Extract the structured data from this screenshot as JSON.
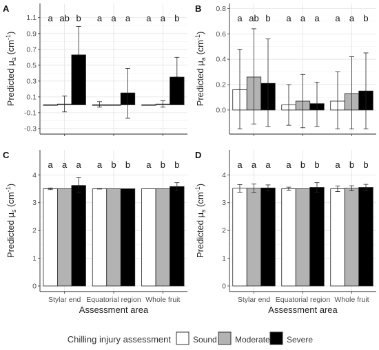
{
  "legend": {
    "title": "Chilling injury assessment",
    "items": [
      {
        "label": "Sound",
        "color": "#ffffff"
      },
      {
        "label": "Moderate",
        "color": "#b3b3b3"
      },
      {
        "label": "Severe",
        "color": "#000000"
      }
    ]
  },
  "chart_data": [
    {
      "panel": "A",
      "type": "bar",
      "categories": [
        "Stylar end",
        "Equatorial region",
        "Whole fruit"
      ],
      "series": [
        {
          "name": "Sound",
          "values": [
            0.0,
            0.0,
            0.0
          ],
          "err_low": [
            0.0,
            -0.03,
            0.0
          ],
          "err_high": [
            0.0,
            0.04,
            0.0
          ]
        },
        {
          "name": "Moderate",
          "values": [
            0.01,
            0.0,
            0.01
          ],
          "err_low": [
            -0.09,
            0.0,
            -0.03
          ],
          "err_high": [
            0.11,
            0.0,
            0.05
          ]
        },
        {
          "name": "Severe",
          "values": [
            0.63,
            0.15,
            0.35
          ],
          "err_low": [
            0.63,
            -0.17,
            0.35
          ],
          "err_high": [
            0.99,
            0.46,
            0.6
          ]
        }
      ],
      "letters": [
        [
          "a",
          "ab",
          "b"
        ],
        [
          "a",
          "a",
          "a"
        ],
        [
          "a",
          "a",
          "b"
        ]
      ],
      "ylabel_main": "Predicted μ",
      "ylabel_sub": "a",
      "ylabel_unit": " (cm",
      "ylabel_exp": "-1",
      "ylabel_close": ")",
      "ylim": [
        -0.37,
        1.28
      ],
      "yticks": [
        -0.3,
        -0.1,
        0.1,
        0.3,
        0.5,
        0.7,
        0.9,
        1.1
      ],
      "yticklabels": [
        "-0.3",
        "-0.1",
        "0.1",
        "0.3",
        "0.5",
        "0.7",
        "0.9",
        "1.1"
      ],
      "grid": true,
      "xlabel": "",
      "show_xticklabels": false
    },
    {
      "panel": "B",
      "type": "bar",
      "categories": [
        "Stylar end",
        "Equatorial region",
        "Whole fruit"
      ],
      "series": [
        {
          "name": "Sound",
          "values": [
            0.16,
            0.04,
            0.07
          ],
          "err_low": [
            -0.15,
            -0.12,
            -0.15
          ],
          "err_high": [
            0.48,
            0.2,
            0.3
          ]
        },
        {
          "name": "Moderate",
          "values": [
            0.26,
            0.07,
            0.13
          ],
          "err_low": [
            -0.11,
            -0.14,
            -0.15
          ],
          "err_high": [
            0.64,
            0.28,
            0.42
          ]
        },
        {
          "name": "Severe",
          "values": [
            0.21,
            0.05,
            0.15
          ],
          "err_low": [
            -0.13,
            -0.13,
            -0.15
          ],
          "err_high": [
            0.56,
            0.22,
            0.45
          ]
        }
      ],
      "letters": [
        [
          "a",
          "ab",
          "b"
        ],
        [
          "a",
          "a",
          "a"
        ],
        [
          "a",
          "a",
          "b"
        ]
      ],
      "ylabel_main": "Predicted μ",
      "ylabel_sub": "a",
      "ylabel_unit": " (cm",
      "ylabel_exp": "-1",
      "ylabel_close": ")",
      "ylim": [
        -0.19,
        0.84
      ],
      "yticks": [
        0.0,
        0.2,
        0.4,
        0.6,
        0.8
      ],
      "yticklabels": [
        "0.0",
        "0.2",
        "0.4",
        "0.6",
        "0.8"
      ],
      "grid": true,
      "xlabel": "",
      "show_xticklabels": false
    },
    {
      "panel": "C",
      "type": "bar",
      "categories": [
        "Stylar end",
        "Equatorial region",
        "Whole fruit"
      ],
      "series": [
        {
          "name": "Sound",
          "values": [
            3.5,
            3.5,
            3.5
          ],
          "err_low": [
            3.47,
            3.49,
            3.5
          ],
          "err_high": [
            3.53,
            3.51,
            3.5
          ]
        },
        {
          "name": "Moderate",
          "values": [
            3.5,
            3.5,
            3.5
          ],
          "err_low": [
            3.5,
            3.5,
            3.5
          ],
          "err_high": [
            3.5,
            3.5,
            3.5
          ]
        },
        {
          "name": "Severe",
          "values": [
            3.62,
            3.5,
            3.58
          ],
          "err_low": [
            3.35,
            3.5,
            3.45
          ],
          "err_high": [
            3.9,
            3.5,
            3.72
          ]
        }
      ],
      "letters": [
        [
          "a",
          "a",
          "a"
        ],
        [
          "a",
          "b",
          "b"
        ],
        [
          "a",
          "b",
          "b"
        ]
      ],
      "ylabel_main": "Predicted μ",
      "ylabel_sub": "s",
      "ylabel_unit": " (cm",
      "ylabel_exp": "-1",
      "ylabel_close": ")",
      "ylim": [
        -0.2,
        4.9
      ],
      "yticks": [
        0,
        1,
        2,
        3,
        4
      ],
      "yticklabels": [
        "0",
        "1",
        "2",
        "3",
        "4"
      ],
      "grid": true,
      "xlabel": "Assessment area",
      "show_xticklabels": true
    },
    {
      "panel": "D",
      "type": "bar",
      "categories": [
        "Stylar end",
        "Equatorial region",
        "Whole fruit"
      ],
      "series": [
        {
          "name": "Sound",
          "values": [
            3.52,
            3.5,
            3.5
          ],
          "err_low": [
            3.38,
            3.44,
            3.4
          ],
          "err_high": [
            3.65,
            3.56,
            3.6
          ]
        },
        {
          "name": "Moderate",
          "values": [
            3.52,
            3.5,
            3.52
          ],
          "err_low": [
            3.37,
            3.5,
            3.43
          ],
          "err_high": [
            3.67,
            3.5,
            3.61
          ]
        },
        {
          "name": "Severe",
          "values": [
            3.53,
            3.55,
            3.55
          ],
          "err_low": [
            3.42,
            3.38,
            3.44
          ],
          "err_high": [
            3.64,
            3.72,
            3.66
          ]
        }
      ],
      "letters": [
        [
          "a",
          "a",
          "a"
        ],
        [
          "a",
          "b",
          "b"
        ],
        [
          "a",
          "b",
          "b"
        ]
      ],
      "ylabel_main": "Predicted μ",
      "ylabel_sub": "s",
      "ylabel_unit": " (cm",
      "ylabel_exp": "-1",
      "ylabel_close": ")",
      "ylim": [
        -0.2,
        4.9
      ],
      "yticks": [
        0,
        1,
        2,
        3,
        4
      ],
      "yticklabels": [
        "0",
        "1",
        "2",
        "3",
        "4"
      ],
      "grid": true,
      "xlabel": "Assessment area",
      "show_xticklabels": true
    }
  ]
}
